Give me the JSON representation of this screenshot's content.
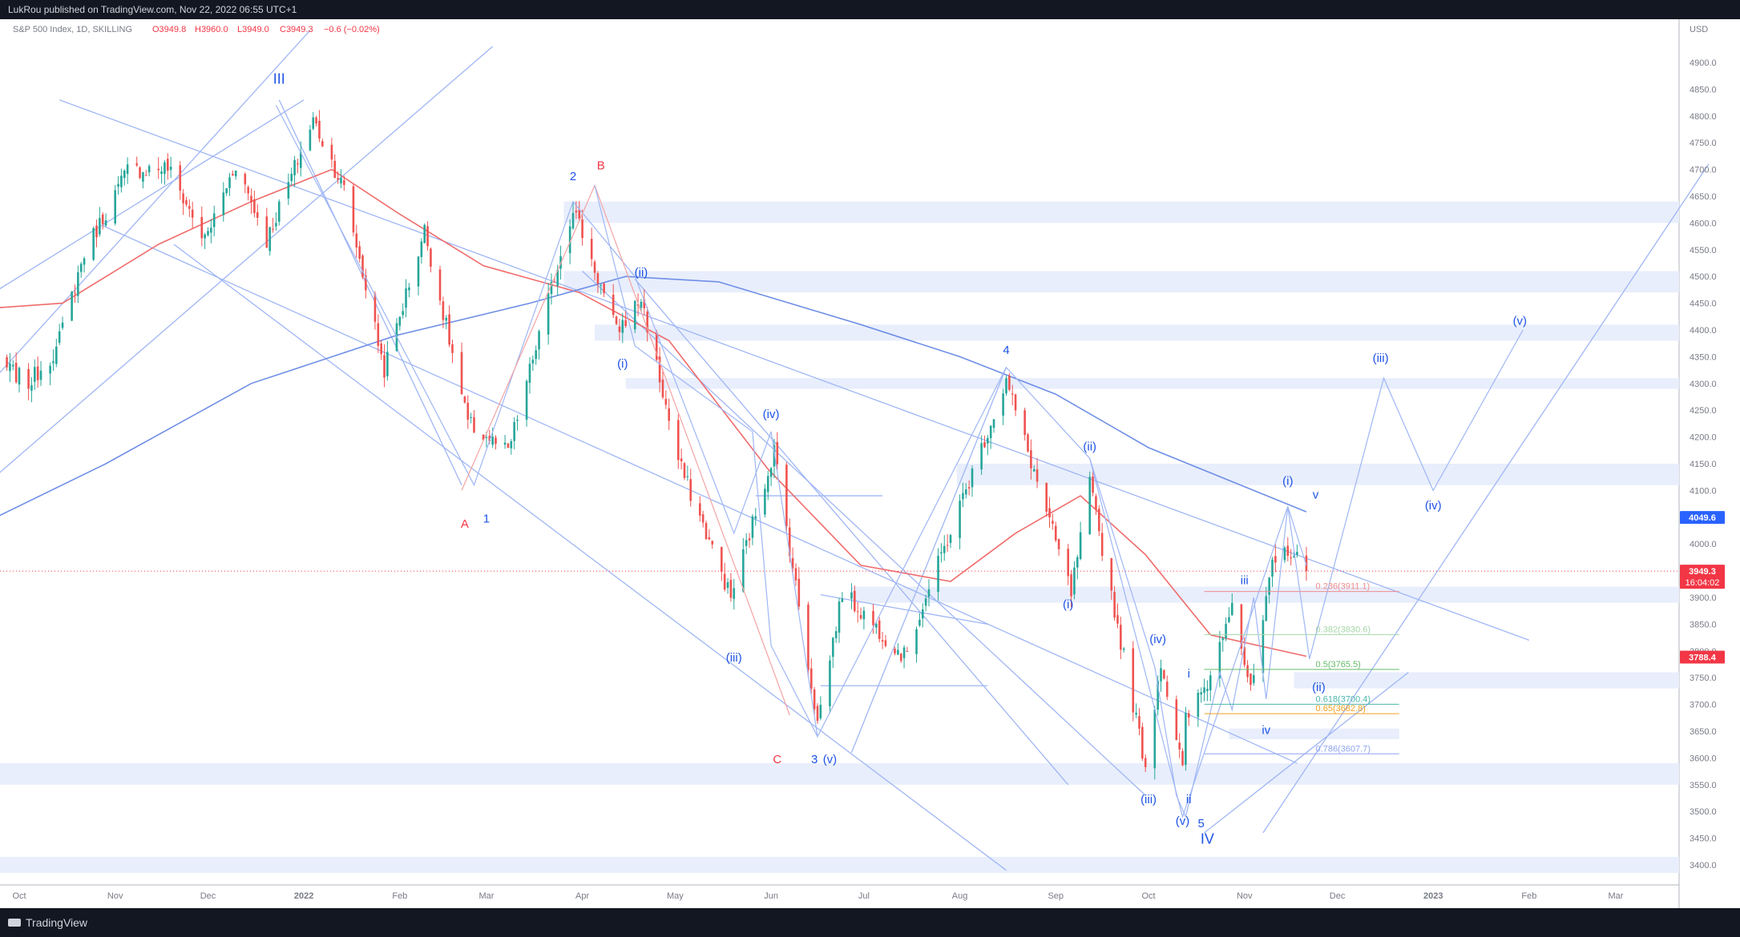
{
  "header": {
    "published": "LukRou published on TradingView.com, Nov 22, 2022 06:55 UTC+1"
  },
  "footer": {
    "brand": "TradingView"
  },
  "colors": {
    "up": "#26a69a",
    "down": "#ef5350",
    "wave_blue": "#1e53e5",
    "wave_red": "#f23645",
    "line_blue": "#9fb6f5",
    "zone": "#e8eefc",
    "ma_red": "#f06b6b",
    "ma_blue": "#6f8fe6",
    "price_tag": "#f23645",
    "price_tag_blue": "#2962ff"
  },
  "chart_data": {
    "type": "candlestick",
    "title": "S&P 500 Index, 1D, SKILLING",
    "ohlc": {
      "O": "O3949.8",
      "H": "H3960.0",
      "L": "L3949.0",
      "C": "C3949.3",
      "chg": "−0.6 (−0.02%)"
    },
    "currency": "USD",
    "ylim": [
      3360,
      4960
    ],
    "y_ticks": [
      3400,
      3450,
      3500,
      3550,
      3600,
      3650,
      3700,
      3750,
      3800,
      3850,
      3900,
      3950,
      4000,
      4050,
      4100,
      4150,
      4200,
      4250,
      4300,
      4350,
      4400,
      4450,
      4500,
      4550,
      4600,
      4650,
      4700,
      4750,
      4800,
      4850,
      4900
    ],
    "x_ticks": [
      {
        "label": "Oct",
        "d": "2021-10-01"
      },
      {
        "label": "Nov",
        "d": "2021-11-01"
      },
      {
        "label": "Dec",
        "d": "2021-12-01"
      },
      {
        "label": "2022",
        "d": "2022-01-01"
      },
      {
        "label": "Feb",
        "d": "2022-02-01"
      },
      {
        "label": "Mar",
        "d": "2022-03-01"
      },
      {
        "label": "Apr",
        "d": "2022-04-01"
      },
      {
        "label": "May",
        "d": "2022-05-01"
      },
      {
        "label": "Jun",
        "d": "2022-06-01"
      },
      {
        "label": "Jul",
        "d": "2022-07-01"
      },
      {
        "label": "Aug",
        "d": "2022-08-01"
      },
      {
        "label": "Sep",
        "d": "2022-09-01"
      },
      {
        "label": "Oct",
        "d": "2022-10-01"
      },
      {
        "label": "Nov",
        "d": "2022-11-01"
      },
      {
        "label": "Dec",
        "d": "2022-12-01"
      },
      {
        "label": "2023",
        "d": "2023-01-01"
      },
      {
        "label": "Feb",
        "d": "2023-02-01"
      },
      {
        "label": "Mar",
        "d": "2023-03-01"
      }
    ],
    "price_anchors": [
      [
        "2021-09-20",
        4358
      ],
      [
        "2021-10-04",
        4300
      ],
      [
        "2021-10-13",
        4363
      ],
      [
        "2021-10-22",
        4544
      ],
      [
        "2021-11-05",
        4698
      ],
      [
        "2021-11-18",
        4704
      ],
      [
        "2021-11-30",
        4567
      ],
      [
        "2021-12-10",
        4712
      ],
      [
        "2021-12-20",
        4568
      ],
      [
        "2022-01-04",
        4793
      ],
      [
        "2022-01-14",
        4662
      ],
      [
        "2022-01-27",
        4326
      ],
      [
        "2022-02-09",
        4587
      ],
      [
        "2022-02-23",
        4225
      ],
      [
        "2022-03-08",
        4170
      ],
      [
        "2022-03-29",
        4631
      ],
      [
        "2022-04-12",
        4397
      ],
      [
        "2022-04-20",
        4459
      ],
      [
        "2022-05-02",
        4155
      ],
      [
        "2022-05-19",
        3900
      ],
      [
        "2022-06-02",
        4176
      ],
      [
        "2022-06-16",
        3666
      ],
      [
        "2022-06-24",
        3911
      ],
      [
        "2022-07-14",
        3790
      ],
      [
        "2022-08-16",
        4305
      ],
      [
        "2022-09-06",
        3908
      ],
      [
        "2022-09-12",
        4110
      ],
      [
        "2022-09-30",
        3585
      ],
      [
        "2022-10-05",
        3783
      ],
      [
        "2022-10-12",
        3577
      ],
      [
        "2022-10-13",
        3670
      ],
      [
        "2022-10-21",
        3752
      ],
      [
        "2022-10-28",
        3901
      ],
      [
        "2022-11-03",
        3720
      ],
      [
        "2022-11-10",
        3956
      ],
      [
        "2022-11-15",
        3992
      ],
      [
        "2022-11-21",
        3949
      ]
    ],
    "last_close": 3949.3,
    "series": [
      {
        "name": "",
        "type": "ma",
        "color": "#f06b6b",
        "points": [
          [
            "2021-09-20",
            4440
          ],
          [
            "2021-10-15",
            4450
          ],
          [
            "2021-11-15",
            4560
          ],
          [
            "2021-12-15",
            4640
          ],
          [
            "2022-01-10",
            4700
          ],
          [
            "2022-01-31",
            4620
          ],
          [
            "2022-02-28",
            4520
          ],
          [
            "2022-03-31",
            4470
          ],
          [
            "2022-04-29",
            4380
          ],
          [
            "2022-05-31",
            4140
          ],
          [
            "2022-06-30",
            3960
          ],
          [
            "2022-07-29",
            3930
          ],
          [
            "2022-08-19",
            4020
          ],
          [
            "2022-09-09",
            4090
          ],
          [
            "2022-09-30",
            3980
          ],
          [
            "2022-10-21",
            3830
          ],
          [
            "2022-11-21",
            3790
          ]
        ]
      },
      {
        "name": "",
        "type": "ma",
        "color": "#6f8fe6",
        "points": [
          [
            "2021-09-20",
            4040
          ],
          [
            "2021-10-29",
            4150
          ],
          [
            "2021-12-15",
            4300
          ],
          [
            "2022-01-31",
            4390
          ],
          [
            "2022-03-15",
            4450
          ],
          [
            "2022-04-15",
            4500
          ],
          [
            "2022-05-15",
            4490
          ],
          [
            "2022-06-30",
            4410
          ],
          [
            "2022-08-01",
            4350
          ],
          [
            "2022-09-01",
            4280
          ],
          [
            "2022-10-01",
            4180
          ],
          [
            "2022-11-21",
            4060
          ]
        ]
      }
    ],
    "zones": [
      {
        "y1": 4600,
        "y2": 4640,
        "from": "2022-03-26"
      },
      {
        "y1": 4470,
        "y2": 4510,
        "from": "2022-03-26"
      },
      {
        "y1": 4380,
        "y2": 4410,
        "from": "2022-04-05"
      },
      {
        "y1": 4290,
        "y2": 4310,
        "from": "2022-04-15"
      },
      {
        "y1": 4110,
        "y2": 4150,
        "from": "2022-07-31"
      },
      {
        "y1": 3890,
        "y2": 3920,
        "from": "2022-06-27"
      },
      {
        "y1": 3730,
        "y2": 3760,
        "from": "2022-11-17"
      },
      {
        "y1": 3635,
        "y2": 3655,
        "from": "2022-10-27",
        "to": "2022-12-21"
      },
      {
        "y1": 3550,
        "y2": 3590,
        "from": "2021-09-20"
      },
      {
        "y1": 3385,
        "y2": 3415,
        "from": "2021-09-20"
      }
    ],
    "lines": [
      [
        [
          "2021-09-20",
          4110
        ],
        [
          "2022-03-03",
          4930
        ]
      ],
      [
        [
          "2021-09-20",
          4290
        ],
        [
          "2022-01-03",
          4960
        ]
      ],
      [
        [
          "2021-09-20",
          4460
        ],
        [
          "2022-01-01",
          4830
        ]
      ],
      [
        [
          "2021-10-14",
          4830
        ],
        [
          "2023-02-01",
          3820
        ]
      ],
      [
        [
          "2021-11-20",
          4560
        ],
        [
          "2022-08-16",
          3390
        ]
      ],
      [
        [
          "2021-10-28",
          4595
        ],
        [
          "2022-11-18",
          3590
        ]
      ],
      [
        [
          "2022-04-18",
          4495
        ],
        [
          "2022-09-05",
          3550
        ]
      ],
      [
        [
          "2022-04-01",
          4510
        ],
        [
          "2022-09-30",
          3530
        ]
      ],
      [
        [
          "2022-11-07",
          3460
        ],
        [
          "2023-03-31",
          4710
        ]
      ],
      [
        [
          "2022-06-17",
          3905
        ],
        [
          "2022-08-10",
          3850
        ]
      ],
      [
        [
          "2022-06-17",
          3735
        ],
        [
          "2022-08-10",
          3735
        ]
      ],
      [
        [
          "2022-05-27",
          4090
        ],
        [
          "2022-07-07",
          4090
        ]
      ],
      [
        [
          "2021-12-24",
          4830
        ],
        [
          "2022-02-21",
          4110
        ]
      ],
      [
        [
          "2022-06-27",
          3610
        ],
        [
          "2022-08-16",
          4330
        ]
      ],
      [
        [
          "2022-10-19",
          3460
        ],
        [
          "2022-12-24",
          3760
        ]
      ]
    ],
    "wave_paths": [
      {
        "color": "#9fb6f5",
        "pts": [
          [
            "2021-12-23",
            4820
          ],
          [
            "2022-02-25",
            4110
          ],
          [
            "2022-03-29",
            4640
          ],
          [
            "2022-04-18",
            4500
          ],
          [
            "2022-05-20",
            4020
          ],
          [
            "2022-06-01",
            4210
          ],
          [
            "2022-06-16",
            3640
          ],
          [
            "2022-08-16",
            4330
          ],
          [
            "2022-09-12",
            4160
          ],
          [
            "2022-10-12",
            3490
          ],
          [
            "2022-11-15",
            4070
          ],
          [
            "2022-11-22",
            3785
          ],
          [
            "2022-12-16",
            4310
          ],
          [
            "2023-01-01",
            4100
          ],
          [
            "2023-01-30",
            4400
          ]
        ]
      },
      {
        "color": "#f4a3a3",
        "pts": [
          [
            "2022-02-21",
            4100
          ],
          [
            "2022-04-05",
            4670
          ],
          [
            "2022-06-07",
            3680
          ]
        ]
      },
      {
        "color": "#9fb6f5",
        "pts": [
          [
            "2022-04-05",
            4670
          ],
          [
            "2022-04-18",
            4370
          ],
          [
            "2022-05-26",
            4210
          ],
          [
            "2022-06-01",
            3810
          ],
          [
            "2022-06-16",
            3640
          ]
        ]
      },
      {
        "color": "#9fb6f5",
        "pts": [
          [
            "2022-09-12",
            4160
          ],
          [
            "2022-10-03",
            3770
          ],
          [
            "2022-10-10",
            3530
          ],
          [
            "2022-10-13",
            3490
          ]
        ]
      },
      {
        "color": "#9fb6f5",
        "pts": [
          [
            "2022-10-13",
            3490
          ],
          [
            "2022-10-24",
            3760
          ],
          [
            "2022-10-28",
            3690
          ],
          [
            "2022-11-04",
            3900
          ],
          [
            "2022-11-08",
            3710
          ],
          [
            "2022-11-15",
            4070
          ],
          [
            "2022-11-21",
            3960
          ]
        ]
      }
    ],
    "fib_levels": [
      {
        "label": "0.236(3911.1)",
        "v": 3911.1,
        "color": "#f28c8c"
      },
      {
        "label": "0.382(3830.6)",
        "v": 3830.6,
        "color": "#a5d6a7"
      },
      {
        "label": "0.5(3765.5)",
        "v": 3765.5,
        "color": "#66bb6a"
      },
      {
        "label": "0.618(3700.4)",
        "v": 3700.4,
        "color": "#4db6ac"
      },
      {
        "label": "0.65(3682.8)",
        "v": 3682.8,
        "color": "#f0a020"
      },
      {
        "label": "0.786(3607.7)",
        "v": 3607.7,
        "color": "#90a4f0"
      }
    ],
    "labels": [
      {
        "t": "III",
        "d": "2021-12-24",
        "v": 4860,
        "c": "blue",
        "big": true
      },
      {
        "t": "1",
        "d": "2022-03-01",
        "v": 4040,
        "c": "blue"
      },
      {
        "t": "A",
        "d": "2022-02-22",
        "v": 4030,
        "c": "red"
      },
      {
        "t": "2",
        "d": "2022-03-29",
        "v": 4680,
        "c": "blue"
      },
      {
        "t": "B",
        "d": "2022-04-07",
        "v": 4700,
        "c": "red"
      },
      {
        "t": "(ii)",
        "d": "2022-04-20",
        "v": 4500,
        "c": "blue"
      },
      {
        "t": "(i)",
        "d": "2022-04-14",
        "v": 4330,
        "c": "blue"
      },
      {
        "t": "(iv)",
        "d": "2022-06-01",
        "v": 4235,
        "c": "blue"
      },
      {
        "t": "(iii)",
        "d": "2022-05-20",
        "v": 3780,
        "c": "blue"
      },
      {
        "t": "C",
        "d": "2022-06-03",
        "v": 3590,
        "c": "red"
      },
      {
        "t": "3",
        "d": "2022-06-15",
        "v": 3590,
        "c": "blue"
      },
      {
        "t": "(v)",
        "d": "2022-06-20",
        "v": 3590,
        "c": "blue"
      },
      {
        "t": "4",
        "d": "2022-08-16",
        "v": 4355,
        "c": "blue"
      },
      {
        "t": "(ii)",
        "d": "2022-09-12",
        "v": 4175,
        "c": "blue"
      },
      {
        "t": "(i)",
        "d": "2022-09-05",
        "v": 3880,
        "c": "blue"
      },
      {
        "t": "(iv)",
        "d": "2022-10-04",
        "v": 3815,
        "c": "blue"
      },
      {
        "t": "i",
        "d": "2022-10-14",
        "v": 3750,
        "c": "blue"
      },
      {
        "t": "ii",
        "d": "2022-10-14",
        "v": 3515,
        "c": "blue"
      },
      {
        "t": "(iii)",
        "d": "2022-10-01",
        "v": 3515,
        "c": "blue"
      },
      {
        "t": "(v)",
        "d": "2022-10-12",
        "v": 3475,
        "c": "blue"
      },
      {
        "t": "5",
        "d": "2022-10-18",
        "v": 3470,
        "c": "blue"
      },
      {
        "t": "IV",
        "d": "2022-10-20",
        "v": 3440,
        "c": "blue",
        "big": true
      },
      {
        "t": "iii",
        "d": "2022-11-01",
        "v": 3925,
        "c": "blue"
      },
      {
        "t": "iv",
        "d": "2022-11-08",
        "v": 3645,
        "c": "blue"
      },
      {
        "t": "(i)",
        "d": "2022-11-15",
        "v": 4110,
        "c": "blue"
      },
      {
        "t": "v",
        "d": "2022-11-24",
        "v": 4085,
        "c": "blue"
      },
      {
        "t": "(ii)",
        "d": "2022-11-25",
        "v": 3725,
        "c": "blue"
      },
      {
        "t": "(iii)",
        "d": "2022-12-15",
        "v": 4340,
        "c": "blue"
      },
      {
        "t": "(iv)",
        "d": "2023-01-01",
        "v": 4065,
        "c": "blue"
      },
      {
        "t": "(v)",
        "d": "2023-01-29",
        "v": 4410,
        "c": "blue"
      }
    ],
    "price_tags": [
      {
        "v": 4049.6,
        "text": "4049.6",
        "color": "#2962ff"
      },
      {
        "v": 3949.3,
        "text": "3949.3",
        "sub": "16:04:02",
        "color": "#f23645"
      },
      {
        "v": 3788.4,
        "text": "3788.4",
        "color": "#f23645"
      }
    ]
  }
}
